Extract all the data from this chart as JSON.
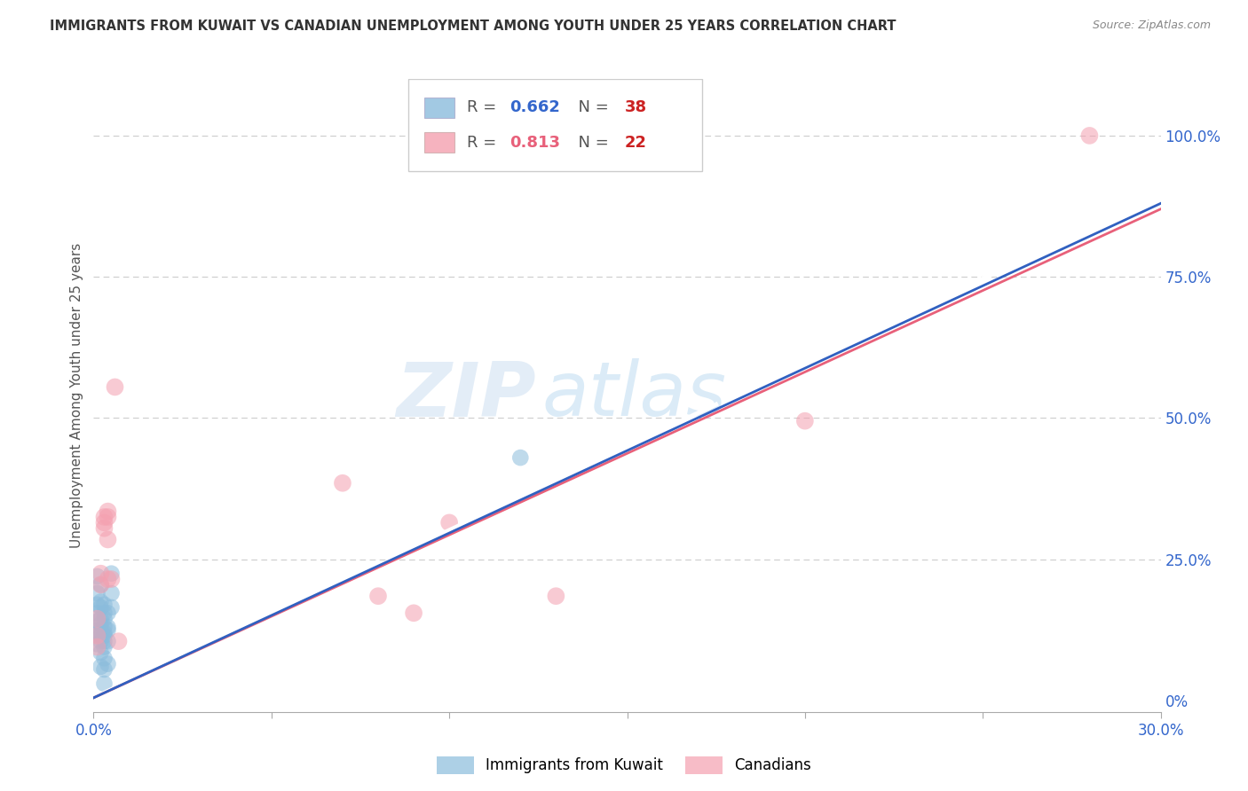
{
  "title": "IMMIGRANTS FROM KUWAIT VS CANADIAN UNEMPLOYMENT AMONG YOUTH UNDER 25 YEARS CORRELATION CHART",
  "source": "Source: ZipAtlas.com",
  "ylabel": "Unemployment Among Youth under 25 years",
  "xlim": [
    0.0,
    0.3
  ],
  "ylim": [
    -0.02,
    1.1
  ],
  "x_ticks": [
    0.0,
    0.05,
    0.1,
    0.15,
    0.2,
    0.25,
    0.3
  ],
  "y_ticks_right": [
    0.0,
    0.25,
    0.5,
    0.75,
    1.0
  ],
  "y_tick_labels_right": [
    "0%",
    "25.0%",
    "50.0%",
    "75.0%",
    "100.0%"
  ],
  "blue_r": 0.662,
  "blue_n": 38,
  "pink_r": 0.813,
  "pink_n": 22,
  "blue_color": "#8BBCDC",
  "pink_color": "#F4A0B0",
  "blue_line_color": "#3060C0",
  "pink_line_color": "#E8607A",
  "blue_scatter": [
    [
      0.001,
      0.22
    ],
    [
      0.001,
      0.19
    ],
    [
      0.001,
      0.17
    ],
    [
      0.001,
      0.155
    ],
    [
      0.001,
      0.14
    ],
    [
      0.001,
      0.125
    ],
    [
      0.001,
      0.115
    ],
    [
      0.001,
      0.1
    ],
    [
      0.002,
      0.205
    ],
    [
      0.002,
      0.175
    ],
    [
      0.002,
      0.165
    ],
    [
      0.002,
      0.145
    ],
    [
      0.002,
      0.135
    ],
    [
      0.002,
      0.125
    ],
    [
      0.002,
      0.115
    ],
    [
      0.002,
      0.105
    ],
    [
      0.002,
      0.085
    ],
    [
      0.002,
      0.06
    ],
    [
      0.003,
      0.17
    ],
    [
      0.003,
      0.155
    ],
    [
      0.003,
      0.145
    ],
    [
      0.003,
      0.13
    ],
    [
      0.003,
      0.12
    ],
    [
      0.003,
      0.115
    ],
    [
      0.003,
      0.105
    ],
    [
      0.003,
      0.095
    ],
    [
      0.003,
      0.075
    ],
    [
      0.003,
      0.055
    ],
    [
      0.003,
      0.03
    ],
    [
      0.004,
      0.155
    ],
    [
      0.004,
      0.13
    ],
    [
      0.004,
      0.125
    ],
    [
      0.004,
      0.105
    ],
    [
      0.005,
      0.225
    ],
    [
      0.005,
      0.19
    ],
    [
      0.005,
      0.165
    ],
    [
      0.12,
      0.43
    ],
    [
      0.004,
      0.065
    ]
  ],
  "pink_scatter": [
    [
      0.001,
      0.145
    ],
    [
      0.001,
      0.115
    ],
    [
      0.001,
      0.095
    ],
    [
      0.003,
      0.325
    ],
    [
      0.003,
      0.315
    ],
    [
      0.003,
      0.305
    ],
    [
      0.004,
      0.335
    ],
    [
      0.004,
      0.325
    ],
    [
      0.004,
      0.285
    ],
    [
      0.004,
      0.215
    ],
    [
      0.005,
      0.215
    ],
    [
      0.006,
      0.555
    ],
    [
      0.002,
      0.225
    ],
    [
      0.002,
      0.205
    ],
    [
      0.07,
      0.385
    ],
    [
      0.08,
      0.185
    ],
    [
      0.09,
      0.155
    ],
    [
      0.1,
      0.315
    ],
    [
      0.13,
      0.185
    ],
    [
      0.2,
      0.495
    ],
    [
      0.28,
      1.0
    ],
    [
      0.007,
      0.105
    ]
  ],
  "blue_reg": [
    0.0,
    0.005,
    0.3,
    0.88
  ],
  "pink_reg": [
    0.0,
    0.005,
    0.3,
    0.87
  ],
  "white_dashed_reg": [
    0.0,
    0.005,
    0.3,
    0.895
  ],
  "watermark_zip": "ZIP",
  "watermark_atlas": "atlas",
  "background_color": "#FFFFFF",
  "grid_color": "#CCCCCC",
  "legend_label_blue": "Immigrants from Kuwait",
  "legend_label_pink": "Canadians"
}
